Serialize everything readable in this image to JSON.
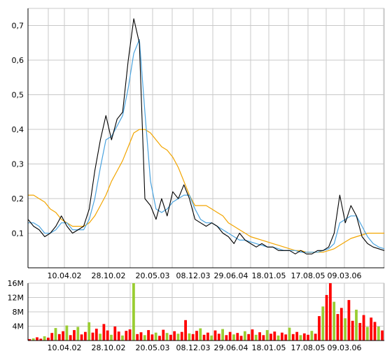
{
  "chart_data": [
    {
      "type": "line",
      "title": "",
      "xlabel": "",
      "ylabel": "",
      "ylim": [
        0,
        0.75
      ],
      "y_ticks": [
        {
          "value": 0.1,
          "label": "0,1"
        },
        {
          "value": 0.2,
          "label": "0,2"
        },
        {
          "value": 0.3,
          "label": "0,3"
        },
        {
          "value": 0.4,
          "label": "0,4"
        },
        {
          "value": 0.5,
          "label": "0,5"
        },
        {
          "value": 0.6,
          "label": "0,6"
        },
        {
          "value": 0.7,
          "label": "0,7"
        }
      ],
      "x_ticks": [
        "10.04.02",
        "28.10.02",
        "20.05.03",
        "08.12.03",
        "29.06.04",
        "18.01.05",
        "17.08.05",
        "09.03.06"
      ],
      "x_range": [
        "06.2001",
        "10.2006"
      ],
      "grid": true,
      "colors": {
        "price": "#000000",
        "short_average": "#4aa3df",
        "long_average": "#f2a500"
      },
      "series": [
        {
          "key": "price",
          "values": [
            [
              "06.2001",
              0.14
            ],
            [
              "07.2001",
              0.12
            ],
            [
              "08.2001",
              0.11
            ],
            [
              "09.2001",
              0.09
            ],
            [
              "10.2001",
              0.1
            ],
            [
              "11.2001",
              0.12
            ],
            [
              "12.2001",
              0.15
            ],
            [
              "01.2002",
              0.12
            ],
            [
              "02.2002",
              0.1
            ],
            [
              "03.2002",
              0.11
            ],
            [
              "04.2002",
              0.12
            ],
            [
              "05.2002",
              0.17
            ],
            [
              "06.2002",
              0.28
            ],
            [
              "07.2002",
              0.37
            ],
            [
              "08.2002",
              0.44
            ],
            [
              "09.2002",
              0.37
            ],
            [
              "10.2002",
              0.43
            ],
            [
              "11.2002",
              0.45
            ],
            [
              "12.2002",
              0.6
            ],
            [
              "01.2003",
              0.72
            ],
            [
              "02.2003",
              0.65
            ],
            [
              "03.2003",
              0.2
            ],
            [
              "04.2003",
              0.18
            ],
            [
              "05.2003",
              0.14
            ],
            [
              "06.2003",
              0.2
            ],
            [
              "07.2003",
              0.15
            ],
            [
              "08.2003",
              0.22
            ],
            [
              "09.2003",
              0.2
            ],
            [
              "10.2003",
              0.24
            ],
            [
              "11.2003",
              0.2
            ],
            [
              "12.2003",
              0.14
            ],
            [
              "01.2004",
              0.13
            ],
            [
              "02.2004",
              0.12
            ],
            [
              "03.2004",
              0.13
            ],
            [
              "04.2004",
              0.12
            ],
            [
              "05.2004",
              0.1
            ],
            [
              "06.2004",
              0.09
            ],
            [
              "07.2004",
              0.07
            ],
            [
              "08.2004",
              0.1
            ],
            [
              "09.2004",
              0.08
            ],
            [
              "10.2004",
              0.07
            ],
            [
              "11.2004",
              0.06
            ],
            [
              "12.2004",
              0.07
            ],
            [
              "01.2005",
              0.06
            ],
            [
              "02.2005",
              0.06
            ],
            [
              "03.2005",
              0.05
            ],
            [
              "04.2005",
              0.05
            ],
            [
              "05.2005",
              0.05
            ],
            [
              "06.2005",
              0.04
            ],
            [
              "07.2005",
              0.05
            ],
            [
              "08.2005",
              0.04
            ],
            [
              "09.2005",
              0.04
            ],
            [
              "10.2005",
              0.05
            ],
            [
              "11.2005",
              0.05
            ],
            [
              "12.2005",
              0.06
            ],
            [
              "01.2006",
              0.1
            ],
            [
              "02.2006",
              0.21
            ],
            [
              "03.2006",
              0.13
            ],
            [
              "04.2006",
              0.18
            ],
            [
              "05.2006",
              0.15
            ],
            [
              "06.2006",
              0.09
            ],
            [
              "07.2006",
              0.07
            ],
            [
              "08.2006",
              0.06
            ],
            [
              "09.2006",
              0.055
            ],
            [
              "10.2006",
              0.05
            ]
          ]
        },
        {
          "key": "short_average",
          "values": [
            [
              "06.2001",
              0.13
            ],
            [
              "07.2001",
              0.13
            ],
            [
              "08.2001",
              0.12
            ],
            [
              "09.2001",
              0.1
            ],
            [
              "10.2001",
              0.1
            ],
            [
              "11.2001",
              0.11
            ],
            [
              "12.2001",
              0.13
            ],
            [
              "01.2002",
              0.13
            ],
            [
              "02.2002",
              0.11
            ],
            [
              "03.2002",
              0.11
            ],
            [
              "04.2002",
              0.11
            ],
            [
              "05.2002",
              0.14
            ],
            [
              "06.2002",
              0.2
            ],
            [
              "07.2002",
              0.29
            ],
            [
              "08.2002",
              0.37
            ],
            [
              "09.2002",
              0.38
            ],
            [
              "10.2002",
              0.41
            ],
            [
              "11.2002",
              0.44
            ],
            [
              "12.2002",
              0.52
            ],
            [
              "01.2003",
              0.62
            ],
            [
              "02.2003",
              0.66
            ],
            [
              "03.2003",
              0.45
            ],
            [
              "04.2003",
              0.25
            ],
            [
              "05.2003",
              0.17
            ],
            [
              "06.2003",
              0.16
            ],
            [
              "07.2003",
              0.17
            ],
            [
              "08.2003",
              0.19
            ],
            [
              "09.2003",
              0.2
            ],
            [
              "10.2003",
              0.21
            ],
            [
              "11.2003",
              0.21
            ],
            [
              "12.2003",
              0.17
            ],
            [
              "01.2004",
              0.14
            ],
            [
              "02.2004",
              0.13
            ],
            [
              "03.2004",
              0.13
            ],
            [
              "04.2004",
              0.12
            ],
            [
              "05.2004",
              0.11
            ],
            [
              "06.2004",
              0.1
            ],
            [
              "07.2004",
              0.09
            ],
            [
              "08.2004",
              0.08
            ],
            [
              "09.2004",
              0.08
            ],
            [
              "10.2004",
              0.075
            ],
            [
              "11.2004",
              0.07
            ],
            [
              "12.2004",
              0.065
            ],
            [
              "01.2005",
              0.06
            ],
            [
              "02.2005",
              0.06
            ],
            [
              "03.2005",
              0.055
            ],
            [
              "04.2005",
              0.05
            ],
            [
              "05.2005",
              0.05
            ],
            [
              "06.2005",
              0.05
            ],
            [
              "07.2005",
              0.045
            ],
            [
              "08.2005",
              0.045
            ],
            [
              "09.2005",
              0.045
            ],
            [
              "10.2005",
              0.045
            ],
            [
              "11.2005",
              0.05
            ],
            [
              "12.2005",
              0.055
            ],
            [
              "01.2006",
              0.07
            ],
            [
              "02.2006",
              0.13
            ],
            [
              "03.2006",
              0.14
            ],
            [
              "04.2006",
              0.15
            ],
            [
              "05.2006",
              0.15
            ],
            [
              "06.2006",
              0.12
            ],
            [
              "07.2006",
              0.09
            ],
            [
              "08.2006",
              0.07
            ],
            [
              "09.2006",
              0.06
            ],
            [
              "10.2006",
              0.055
            ]
          ]
        },
        {
          "key": "long_average",
          "values": [
            [
              "06.2001",
              0.21
            ],
            [
              "07.2001",
              0.21
            ],
            [
              "08.2001",
              0.2
            ],
            [
              "09.2001",
              0.19
            ],
            [
              "10.2001",
              0.17
            ],
            [
              "11.2001",
              0.16
            ],
            [
              "12.2001",
              0.14
            ],
            [
              "01.2002",
              0.13
            ],
            [
              "02.2002",
              0.12
            ],
            [
              "03.2002",
              0.12
            ],
            [
              "04.2002",
              0.12
            ],
            [
              "05.2002",
              0.13
            ],
            [
              "06.2002",
              0.15
            ],
            [
              "07.2002",
              0.18
            ],
            [
              "08.2002",
              0.21
            ],
            [
              "09.2002",
              0.25
            ],
            [
              "10.2002",
              0.28
            ],
            [
              "11.2002",
              0.31
            ],
            [
              "12.2002",
              0.35
            ],
            [
              "01.2003",
              0.39
            ],
            [
              "02.2003",
              0.4
            ],
            [
              "03.2003",
              0.4
            ],
            [
              "04.2003",
              0.39
            ],
            [
              "05.2003",
              0.37
            ],
            [
              "06.2003",
              0.35
            ],
            [
              "07.2003",
              0.34
            ],
            [
              "08.2003",
              0.32
            ],
            [
              "09.2003",
              0.29
            ],
            [
              "10.2003",
              0.25
            ],
            [
              "11.2003",
              0.21
            ],
            [
              "12.2003",
              0.18
            ],
            [
              "01.2004",
              0.18
            ],
            [
              "02.2004",
              0.18
            ],
            [
              "03.2004",
              0.17
            ],
            [
              "04.2004",
              0.16
            ],
            [
              "05.2004",
              0.15
            ],
            [
              "06.2004",
              0.13
            ],
            [
              "07.2004",
              0.12
            ],
            [
              "08.2004",
              0.11
            ],
            [
              "09.2004",
              0.1
            ],
            [
              "10.2004",
              0.09
            ],
            [
              "11.2004",
              0.085
            ],
            [
              "12.2004",
              0.08
            ],
            [
              "01.2005",
              0.075
            ],
            [
              "02.2005",
              0.07
            ],
            [
              "03.2005",
              0.065
            ],
            [
              "04.2005",
              0.06
            ],
            [
              "05.2005",
              0.055
            ],
            [
              "06.2005",
              0.05
            ],
            [
              "07.2005",
              0.05
            ],
            [
              "08.2005",
              0.045
            ],
            [
              "09.2005",
              0.045
            ],
            [
              "10.2005",
              0.045
            ],
            [
              "11.2005",
              0.045
            ],
            [
              "12.2005",
              0.05
            ],
            [
              "01.2006",
              0.055
            ],
            [
              "02.2006",
              0.065
            ],
            [
              "03.2006",
              0.075
            ],
            [
              "04.2006",
              0.085
            ],
            [
              "05.2006",
              0.09
            ],
            [
              "06.2006",
              0.095
            ],
            [
              "07.2006",
              0.1
            ],
            [
              "08.2006",
              0.1
            ],
            [
              "09.2006",
              0.1
            ],
            [
              "10.2006",
              0.1
            ]
          ]
        }
      ]
    },
    {
      "type": "bar",
      "title": "",
      "xlabel": "",
      "ylabel": "",
      "ylim": [
        0,
        16
      ],
      "y_unit": "M",
      "y_ticks": [
        {
          "value": 4,
          "label": "4M"
        },
        {
          "value": 8,
          "label": "8M"
        },
        {
          "value": 12,
          "label": "12M"
        },
        {
          "value": 16,
          "label": "16M"
        }
      ],
      "x_ticks": [
        "10.04.02",
        "28.10.02",
        "20.05.03",
        "08.12.03",
        "29.06.04",
        "18.01.05",
        "17.08.05",
        "09.03.06"
      ],
      "grid": true,
      "colors": {
        "up": "#9acd32",
        "down": "#ff0000"
      },
      "series": [
        {
          "key": "volume",
          "values": [
            0.4,
            0.6,
            0.9,
            0.5,
            1.2,
            0.8,
            2.1,
            3.5,
            1.8,
            2.6,
            4.2,
            1.5,
            2.9,
            3.8,
            1.7,
            2.4,
            5.1,
            2.2,
            3.3,
            1.9,
            4.6,
            2.8,
            1.6,
            3.9,
            2.5,
            1.4,
            2.7,
            3.1,
            16.0,
            1.8,
            2.3,
            1.5,
            2.9,
            1.7,
            2.2,
            1.3,
            3.0,
            2.1,
            1.6,
            2.6,
            1.9,
            2.4,
            5.7,
            2.0,
            1.8,
            2.7,
            3.4,
            1.6,
            2.2,
            1.4,
            2.8,
            1.9,
            3.2,
            1.5,
            2.4,
            1.7,
            2.1,
            1.3,
            2.6,
            1.8,
            3.1,
            1.6,
            2.3,
            1.5,
            2.9,
            1.9,
            2.5,
            1.4,
            2.2,
            1.7,
            3.6,
            1.8,
            2.4,
            1.5,
            2.0,
            1.6,
            2.7,
            1.9,
            6.8,
            9.5,
            12.7,
            16.0,
            10.8,
            7.4,
            9.1,
            6.2,
            11.3,
            5.5,
            8.6,
            4.9,
            7.1,
            3.8,
            6.4,
            5.2,
            3.9,
            2.8
          ]
        }
      ]
    }
  ]
}
